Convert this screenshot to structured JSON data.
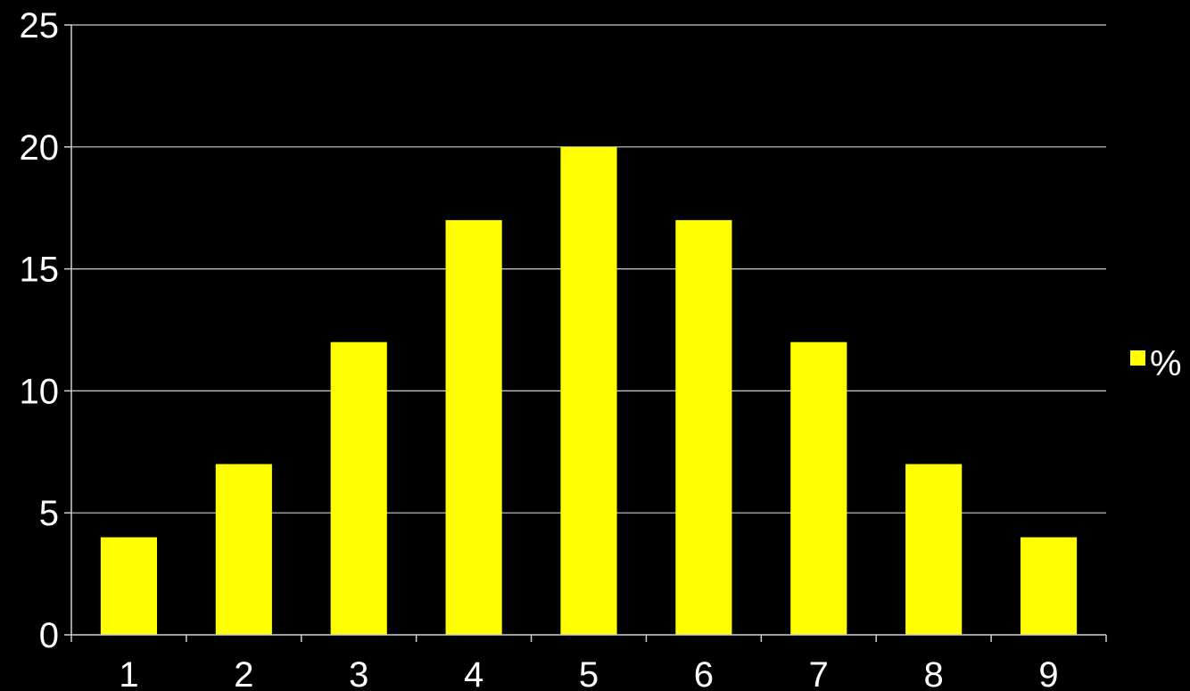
{
  "chart_data": {
    "type": "bar",
    "title": "",
    "xlabel": "",
    "ylabel": "",
    "categories": [
      "1",
      "2",
      "3",
      "4",
      "5",
      "6",
      "7",
      "8",
      "9"
    ],
    "series": [
      {
        "name": "%",
        "values": [
          4,
          7,
          12,
          17,
          20,
          17,
          12,
          7,
          4
        ]
      }
    ],
    "ylim": [
      0,
      25
    ],
    "yticks": [
      "0",
      "5",
      "10",
      "15",
      "20",
      "25"
    ],
    "grid": true,
    "legend_position": "right",
    "colors": {
      "background": "#000000",
      "bar": "#ffff00",
      "grid": "#cfcfcf",
      "text": "#ffffff"
    }
  }
}
